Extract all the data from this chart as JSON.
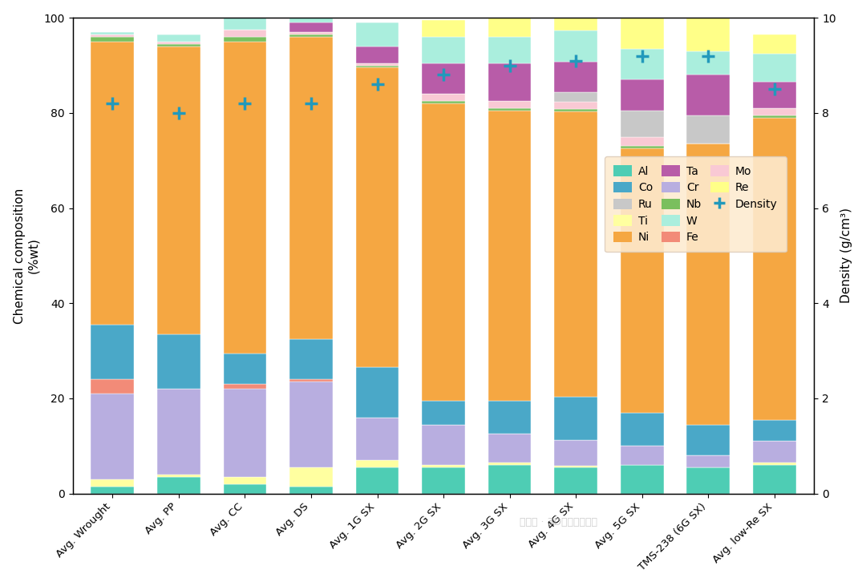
{
  "categories": [
    "Avg. Wrought",
    "Avg. PP",
    "Avg. CC",
    "Avg. DS",
    "Avg. 1G SX",
    "Avg. 2G SX",
    "Avg. 3G SX",
    "Avg. 4G SX",
    "Avg. 5G SX",
    "TMS-238 (6G SX)",
    "Avg. low-Re SX"
  ],
  "elements": [
    "Al",
    "Ti",
    "Cr",
    "Fe",
    "Co",
    "Ni",
    "Nb",
    "Mo",
    "Ru",
    "Ta",
    "W",
    "Re"
  ],
  "colors": {
    "Al": "#4ecdb4",
    "Ti": "#ffffa0",
    "Cr": "#b8aee0",
    "Fe": "#f28b78",
    "Co": "#4aa8c8",
    "Ni": "#f5a742",
    "Nb": "#7abf5e",
    "Mo": "#f9c9d4",
    "Ru": "#c8c8c8",
    "Ta": "#b85ca8",
    "W": "#aaeedd",
    "Re": "#ffff88"
  },
  "data": {
    "Al": [
      1.5,
      3.5,
      2.0,
      1.5,
      5.5,
      5.5,
      6.0,
      5.5,
      6.0,
      5.5,
      6.0
    ],
    "Ti": [
      1.5,
      0.5,
      1.5,
      4.0,
      1.5,
      0.5,
      0.5,
      0.3,
      0.0,
      0.0,
      0.5
    ],
    "Cr": [
      18.0,
      18.0,
      18.5,
      18.0,
      9.0,
      8.5,
      6.0,
      5.5,
      4.0,
      2.5,
      4.5
    ],
    "Fe": [
      3.0,
      0.0,
      1.0,
      0.5,
      0.0,
      0.0,
      0.0,
      0.0,
      0.0,
      0.0,
      0.0
    ],
    "Co": [
      11.5,
      11.5,
      6.5,
      8.5,
      10.5,
      5.0,
      7.0,
      9.0,
      7.0,
      6.5,
      4.5
    ],
    "Ni": [
      59.5,
      60.5,
      65.5,
      63.5,
      63.0,
      62.5,
      61.0,
      60.0,
      55.5,
      59.0,
      63.5
    ],
    "Nb": [
      1.0,
      0.5,
      1.0,
      0.5,
      0.5,
      0.5,
      0.5,
      0.5,
      0.5,
      0.0,
      0.5
    ],
    "Mo": [
      0.5,
      0.5,
      1.5,
      0.5,
      0.5,
      1.5,
      1.5,
      1.5,
      2.0,
      0.0,
      1.5
    ],
    "Ru": [
      0.0,
      0.0,
      0.0,
      0.0,
      0.0,
      0.0,
      0.0,
      2.0,
      5.5,
      6.0,
      0.0
    ],
    "Ta": [
      0.0,
      0.0,
      0.0,
      2.0,
      3.5,
      6.5,
      8.0,
      6.5,
      6.5,
      8.5,
      5.5
    ],
    "W": [
      0.5,
      1.5,
      2.5,
      1.0,
      5.0,
      5.5,
      5.5,
      6.5,
      6.5,
      5.0,
      6.0
    ],
    "Re": [
      0.0,
      0.0,
      0.0,
      0.0,
      0.0,
      3.5,
      5.5,
      5.5,
      6.5,
      7.0,
      4.0
    ]
  },
  "density": [
    8.2,
    8.0,
    8.2,
    8.2,
    8.6,
    8.8,
    9.0,
    9.1,
    9.2,
    9.2,
    8.5
  ],
  "ylim": [
    0,
    100
  ],
  "ylabel_left": "Chemical composition\n(%wt)",
  "ylabel_right": "Density (g/cm³)",
  "density_color": "#2299bb",
  "background_color": "#ffffff",
  "legend_bg": "#fdebd0",
  "legend_order_col1": [
    "Al",
    "Ti",
    "Cr",
    "Fe",
    "Density"
  ],
  "legend_order_col2": [
    "Co",
    "Ni",
    "Nb",
    "Mo"
  ],
  "legend_order_col3": [
    "Ru",
    "Ta",
    "W",
    "Re"
  ]
}
